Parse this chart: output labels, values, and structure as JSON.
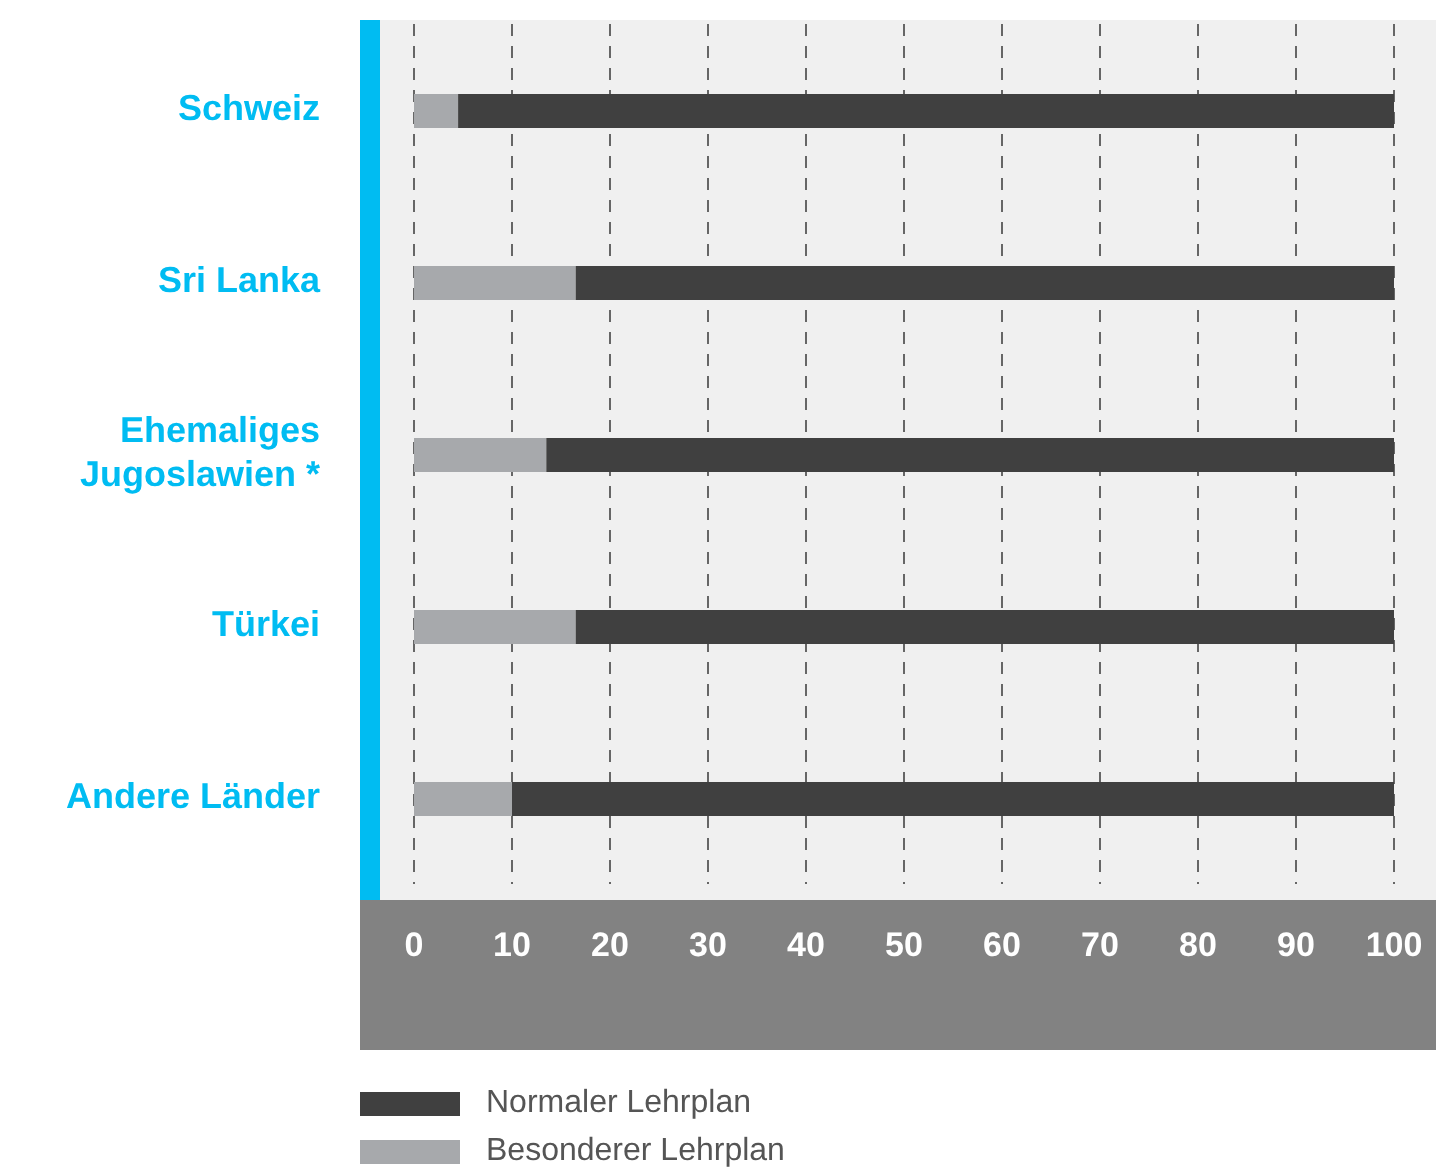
{
  "chart_data": {
    "type": "bar",
    "orientation": "horizontal",
    "stacked": true,
    "categories": [
      "Schweiz",
      "Sri Lanka",
      "Ehemaliges Jugoslawien *",
      "Türkei",
      "Andere Länder"
    ],
    "series": [
      {
        "name": "Besonderer Lehrplan",
        "color": "#a7a9ac",
        "values": [
          4.5,
          16.5,
          13.5,
          16.5,
          10
        ]
      },
      {
        "name": "Normaler Lehrplan",
        "color": "#404040",
        "values": [
          95.5,
          83.5,
          86.5,
          83.5,
          90
        ]
      }
    ],
    "xlim": [
      0,
      100
    ],
    "xticks": [
      0,
      10,
      20,
      30,
      40,
      50,
      60,
      70,
      80,
      90,
      100
    ],
    "grid": "x",
    "legend": "bottom left"
  }
}
